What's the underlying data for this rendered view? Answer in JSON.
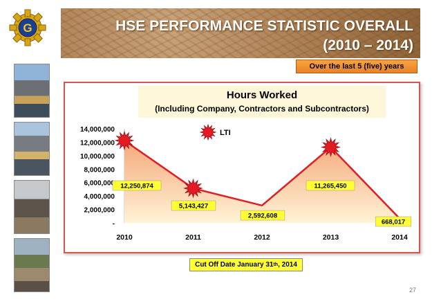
{
  "header": {
    "title_line1": "HSE PERFORMANCE STATISTIC OVERALL",
    "title_line2": "(2010 – 2014)",
    "logo_letter": "G"
  },
  "badge": {
    "text": "Over the last 5 (five) years"
  },
  "cutoff": {
    "prefix": "Cut Off Date January 31",
    "sup": "th",
    "suffix": ", 2014"
  },
  "page_number": "27",
  "colors": {
    "line": "#e31b23",
    "label_bg": "#ffff33",
    "star": "#e31b23",
    "area_top": "#f4a87a",
    "area_bottom": "#fff3d6"
  },
  "chart_data": {
    "type": "area",
    "title": "Hours Worked",
    "subtitle": "(Including Company, Contractors and Subcontractors)",
    "categories": [
      "2010",
      "2011",
      "2012",
      "2013",
      "2014"
    ],
    "values": [
      12250874,
      5143427,
      2592608,
      11265450,
      668017
    ],
    "value_labels": [
      "12,250,874",
      "5,143,427",
      "2,592,608",
      "11,265,450",
      "668,017"
    ],
    "y_ticks": [
      "14,000,000",
      "12,000,000",
      "10,000,000",
      "8,000,000",
      "6,000,000",
      "4,000,000",
      "2,000,000",
      "-"
    ],
    "y_tick_values": [
      14000000,
      12000000,
      10000000,
      8000000,
      6000000,
      4000000,
      2000000,
      0
    ],
    "ylim": [
      0,
      14000000
    ],
    "legend": {
      "label": "LTI",
      "placement": "top-center"
    },
    "lti_markers": [
      "2010",
      "2011",
      "2013"
    ]
  }
}
